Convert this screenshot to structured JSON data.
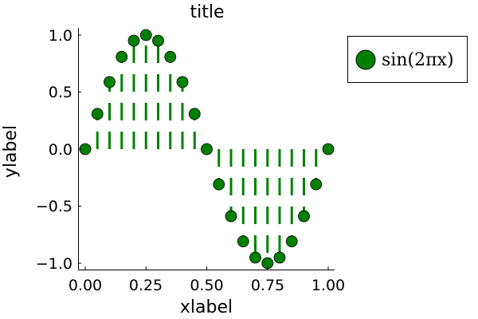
{
  "chart_data": {
    "type": "scatter",
    "subtype": "stem (dashed stems from y=0 with circular markers)",
    "title": "title",
    "xlabel": "xlabel",
    "ylabel": "ylabel",
    "xlim": [
      0,
      1
    ],
    "ylim": [
      -1,
      1
    ],
    "xticks": [
      "0.00",
      "0.25",
      "0.50",
      "0.75",
      "1.00"
    ],
    "yticks": [
      "-1.0",
      "-0.5",
      "0.0",
      "0.5",
      "1.0"
    ],
    "grid": false,
    "legend_position": "outer right top",
    "series": [
      {
        "name": "sin(2πx)",
        "color": "#008000",
        "x": [
          0,
          0.05,
          0.1,
          0.15,
          0.2,
          0.25,
          0.3,
          0.35,
          0.4,
          0.45,
          0.5,
          0.55,
          0.6,
          0.65,
          0.7,
          0.75,
          0.8,
          0.85,
          0.9,
          0.95,
          1.0
        ],
        "values": [
          0,
          0.309,
          0.588,
          0.809,
          0.951,
          1.0,
          0.951,
          0.809,
          0.588,
          0.309,
          0,
          -0.309,
          -0.588,
          -0.809,
          -0.951,
          -1.0,
          -0.951,
          -0.809,
          -0.588,
          -0.309,
          0
        ]
      }
    ]
  },
  "labels": {
    "title": "title",
    "xlabel": "xlabel",
    "ylabel": "ylabel",
    "legend": "sin(2πx)",
    "xticks": [
      "0.00",
      "0.25",
      "0.50",
      "0.75",
      "1.00"
    ],
    "yticks": [
      "−1.0",
      "−0.5",
      "0.0",
      "0.5",
      "1.0"
    ]
  }
}
